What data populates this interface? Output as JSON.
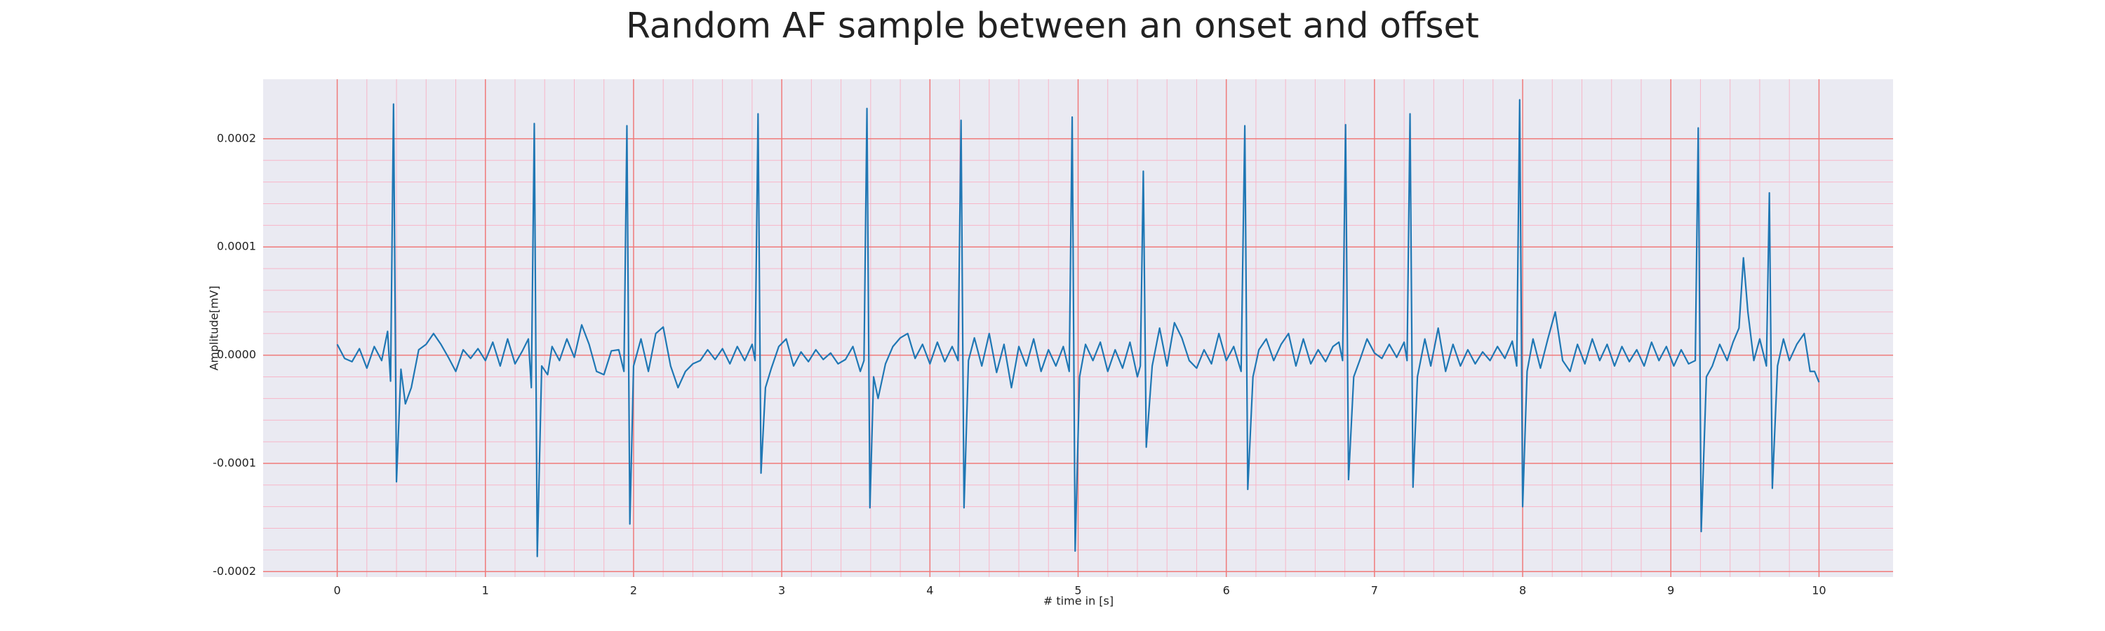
{
  "chart_data": {
    "type": "line",
    "title": "Random AF sample between an onset and offset",
    "xlabel": "# time in [s]",
    "ylabel": "Amplitude[mV]",
    "color": "#1f77b4",
    "grid": true,
    "minor_grid": true,
    "xlim": [
      -0.5,
      10.5
    ],
    "xticks": [
      0,
      1,
      2,
      3,
      4,
      5,
      6,
      7,
      8,
      9,
      10
    ],
    "ylim": [
      -0.000205,
      0.000255
    ],
    "yticks": [
      -0.0002,
      -0.0001,
      {
        "value": 0,
        "label": "0.0000"
      },
      0.0001,
      0.0002
    ],
    "x": [
      0,
      0.05,
      0.1,
      0.15,
      0.2,
      0.25,
      0.3,
      0.34,
      0.36,
      0.38,
      0.4,
      0.43,
      0.46,
      0.5,
      0.55,
      0.6,
      0.65,
      0.7,
      0.75,
      0.8,
      0.85,
      0.9,
      0.95,
      1.0,
      1.05,
      1.1,
      1.15,
      1.2,
      1.25,
      1.29,
      1.31,
      1.33,
      1.35,
      1.38,
      1.42,
      1.45,
      1.5,
      1.55,
      1.6,
      1.65,
      1.7,
      1.75,
      1.8,
      1.85,
      1.9,
      1.935,
      1.955,
      1.975,
      2.0,
      2.05,
      2.1,
      2.15,
      2.2,
      2.25,
      2.3,
      2.35,
      2.4,
      2.45,
      2.5,
      2.55,
      2.6,
      2.65,
      2.7,
      2.75,
      2.8,
      2.82,
      2.84,
      2.86,
      2.89,
      2.93,
      2.98,
      3.03,
      3.08,
      3.13,
      3.18,
      3.23,
      3.28,
      3.33,
      3.38,
      3.43,
      3.48,
      3.53,
      3.555,
      3.575,
      3.595,
      3.62,
      3.65,
      3.7,
      3.75,
      3.8,
      3.85,
      3.9,
      3.95,
      4.0,
      4.05,
      4.1,
      4.15,
      4.19,
      4.21,
      4.23,
      4.26,
      4.3,
      4.35,
      4.4,
      4.45,
      4.5,
      4.55,
      4.6,
      4.65,
      4.7,
      4.75,
      4.8,
      4.85,
      4.9,
      4.94,
      4.96,
      4.98,
      5.01,
      5.05,
      5.1,
      5.15,
      5.2,
      5.25,
      5.3,
      5.35,
      5.4,
      5.42,
      5.44,
      5.46,
      5.5,
      5.55,
      5.6,
      5.65,
      5.7,
      5.75,
      5.8,
      5.85,
      5.9,
      5.95,
      6.0,
      6.05,
      6.1,
      6.125,
      6.145,
      6.18,
      6.22,
      6.27,
      6.32,
      6.37,
      6.42,
      6.47,
      6.52,
      6.57,
      6.62,
      6.67,
      6.72,
      6.76,
      6.785,
      6.805,
      6.825,
      6.86,
      6.9,
      6.95,
      7.0,
      7.05,
      7.1,
      7.15,
      7.2,
      7.22,
      7.24,
      7.26,
      7.29,
      7.34,
      7.38,
      7.43,
      7.48,
      7.53,
      7.58,
      7.63,
      7.68,
      7.73,
      7.78,
      7.83,
      7.88,
      7.93,
      7.96,
      7.98,
      8.0,
      8.03,
      8.07,
      8.12,
      8.17,
      8.22,
      8.27,
      8.32,
      8.37,
      8.42,
      8.47,
      8.52,
      8.57,
      8.62,
      8.67,
      8.72,
      8.77,
      8.82,
      8.87,
      8.92,
      8.97,
      9.02,
      9.07,
      9.12,
      9.165,
      9.185,
      9.205,
      9.24,
      9.28,
      9.33,
      9.38,
      9.42,
      9.46,
      9.49,
      9.52,
      9.56,
      9.6,
      9.645,
      9.665,
      9.685,
      9.72,
      9.76,
      9.8,
      9.85,
      9.9,
      9.94,
      9.97,
      10.0
    ],
    "values": [
      1e-05,
      -3e-06,
      -6e-06,
      6e-06,
      -1.2e-05,
      8e-06,
      -5e-06,
      2.2e-05,
      -2.4e-05,
      0.000232,
      -0.000117,
      -1.3e-05,
      -4.5e-05,
      -3e-05,
      5e-06,
      1e-05,
      2e-05,
      1e-05,
      -2e-06,
      -1.5e-05,
      5e-06,
      -3e-06,
      6e-06,
      -5e-06,
      1.2e-05,
      -1e-05,
      1.5e-05,
      -8e-06,
      4e-06,
      1.5e-05,
      -3e-05,
      0.000214,
      -0.000186,
      -1e-05,
      -1.8e-05,
      8e-06,
      -5e-06,
      1.5e-05,
      -2e-06,
      2.8e-05,
      1e-05,
      -1.5e-05,
      -1.8e-05,
      4e-06,
      5e-06,
      -1.5e-05,
      0.000212,
      -0.000156,
      -1e-05,
      1.5e-05,
      -1.5e-05,
      2e-05,
      2.6e-05,
      -1e-05,
      -3e-05,
      -1.5e-05,
      -8e-06,
      -5e-06,
      5e-06,
      -4e-06,
      6e-06,
      -8e-06,
      8e-06,
      -5e-06,
      1e-05,
      -5e-06,
      0.000223,
      -0.000109,
      -3e-05,
      -1.2e-05,
      8e-06,
      1.5e-05,
      -1e-05,
      3e-06,
      -6e-06,
      5e-06,
      -4e-06,
      2e-06,
      -8e-06,
      -4e-06,
      8e-06,
      -1.5e-05,
      -5e-06,
      0.000228,
      -0.000141,
      -2e-05,
      -4e-05,
      -8e-06,
      8e-06,
      1.6e-05,
      2e-05,
      -3e-06,
      1e-05,
      -8e-06,
      1.2e-05,
      -6e-06,
      8e-06,
      -5e-06,
      0.000217,
      -0.000141,
      -5e-06,
      1.6e-05,
      -1e-05,
      2e-05,
      -1.6e-05,
      1e-05,
      -3e-05,
      8e-06,
      -1e-05,
      1.5e-05,
      -1.5e-05,
      5e-06,
      -1e-05,
      8e-06,
      -1.5e-05,
      0.00022,
      -0.000181,
      -2e-05,
      1e-05,
      -5e-06,
      1.2e-05,
      -1.5e-05,
      5e-06,
      -1.2e-05,
      1.2e-05,
      -2e-05,
      -1e-05,
      0.00017,
      -8.5e-05,
      -1e-05,
      2.5e-05,
      -1e-05,
      3e-05,
      1.6e-05,
      -5e-06,
      -1.2e-05,
      5e-06,
      -8e-06,
      2e-05,
      -5e-06,
      8e-06,
      -1.5e-05,
      0.000212,
      -0.000124,
      -2e-05,
      5e-06,
      1.5e-05,
      -5e-06,
      1e-05,
      2e-05,
      -1e-05,
      1.5e-05,
      -8e-06,
      5e-06,
      -6e-06,
      8e-06,
      1.2e-05,
      -5e-06,
      0.000213,
      -0.000115,
      -2e-05,
      -5e-06,
      1.5e-05,
      2e-06,
      -3e-06,
      1e-05,
      -2e-06,
      1.2e-05,
      -5e-06,
      0.000223,
      -0.000122,
      -2e-05,
      1.5e-05,
      -1e-05,
      2.5e-05,
      -1.5e-05,
      1e-05,
      -1e-05,
      5e-06,
      -8e-06,
      3e-06,
      -5e-06,
      8e-06,
      -3e-06,
      1.3e-05,
      -1e-05,
      0.000236,
      -0.00014,
      -1.5e-05,
      1.5e-05,
      -1.2e-05,
      1.5e-05,
      4e-05,
      -5e-06,
      -1.5e-05,
      1e-05,
      -8e-06,
      1.5e-05,
      -5e-06,
      1e-05,
      -1e-05,
      8e-06,
      -6e-06,
      5e-06,
      -1e-05,
      1.2e-05,
      -5e-06,
      8e-06,
      -1e-05,
      5e-06,
      -8e-06,
      -5e-06,
      0.00021,
      -0.000163,
      -2e-05,
      -1e-05,
      1e-05,
      -5e-06,
      1.2e-05,
      2.5e-05,
      9e-05,
      4e-05,
      -5e-06,
      1.5e-05,
      -1e-05,
      0.00015,
      -0.000123,
      -1e-05,
      1.5e-05,
      -5e-06,
      1e-05,
      2e-05,
      -1.5e-05,
      -1.5e-05,
      -2.5e-05
    ]
  }
}
